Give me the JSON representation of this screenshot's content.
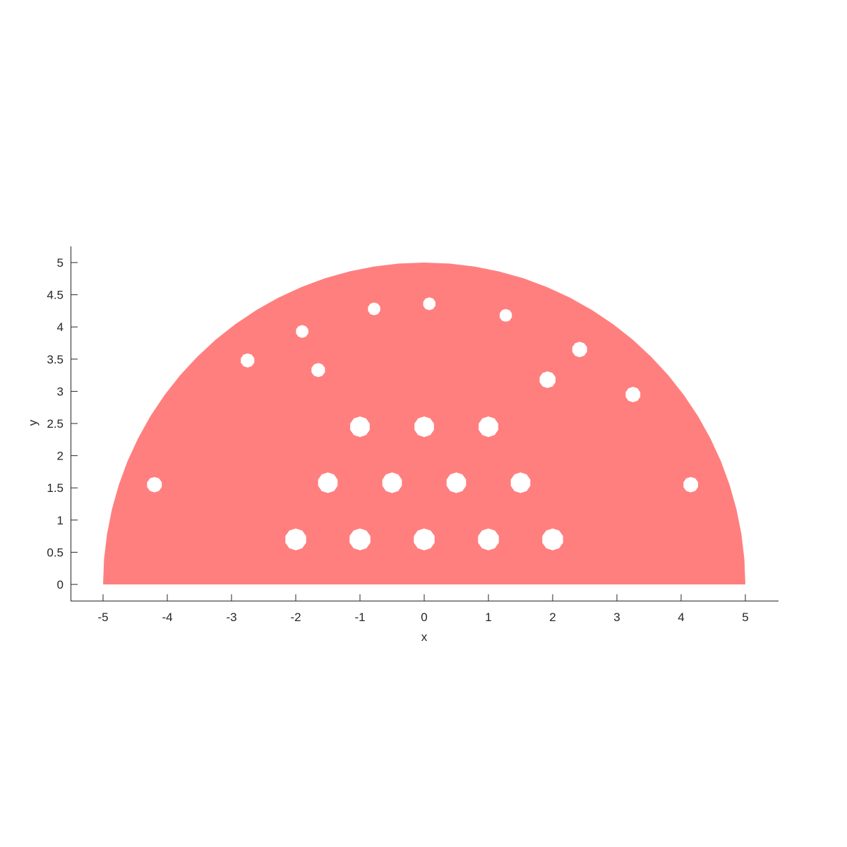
{
  "chart_data": {
    "type": "scatter",
    "title": "",
    "xlabel": "x",
    "ylabel": "y",
    "xlim": [
      -5.5,
      5.5
    ],
    "ylim": [
      -0.25,
      5.25
    ],
    "x_ticks": [
      "-5",
      "-4",
      "-3",
      "-2",
      "-1",
      "0",
      "1",
      "2",
      "3",
      "4",
      "5"
    ],
    "y_ticks": [
      "0",
      "0.5",
      "1",
      "1.5",
      "2",
      "2.5",
      "3",
      "3.5",
      "4",
      "4.5",
      "5"
    ],
    "grid": false,
    "region": {
      "shape": "half-disk",
      "center": [
        0,
        0
      ],
      "radius": 5,
      "color": "#FF7F7F"
    },
    "holes": [
      {
        "x": -1.0,
        "y": 0.7,
        "r": 0.17
      },
      {
        "x": 0.0,
        "y": 0.7,
        "r": 0.17
      },
      {
        "x": 1.0,
        "y": 0.7,
        "r": 0.17
      },
      {
        "x": 2.0,
        "y": 0.7,
        "r": 0.17
      },
      {
        "x": -2.0,
        "y": 0.7,
        "r": 0.17
      },
      {
        "x": -1.5,
        "y": 1.58,
        "r": 0.16
      },
      {
        "x": -0.5,
        "y": 1.58,
        "r": 0.16
      },
      {
        "x": 0.5,
        "y": 1.58,
        "r": 0.16
      },
      {
        "x": 1.5,
        "y": 1.58,
        "r": 0.16
      },
      {
        "x": -1.0,
        "y": 2.45,
        "r": 0.16
      },
      {
        "x": 0.0,
        "y": 2.45,
        "r": 0.16
      },
      {
        "x": 1.0,
        "y": 2.45,
        "r": 0.16
      },
      {
        "x": -4.2,
        "y": 1.55,
        "r": 0.12
      },
      {
        "x": 4.15,
        "y": 1.55,
        "r": 0.12
      },
      {
        "x": -2.75,
        "y": 3.48,
        "r": 0.11
      },
      {
        "x": 1.92,
        "y": 3.18,
        "r": 0.13
      },
      {
        "x": 2.42,
        "y": 3.65,
        "r": 0.12
      },
      {
        "x": 3.25,
        "y": 2.95,
        "r": 0.12
      },
      {
        "x": -1.65,
        "y": 3.33,
        "r": 0.11
      },
      {
        "x": -0.78,
        "y": 4.28,
        "r": 0.1
      },
      {
        "x": 0.08,
        "y": 4.36,
        "r": 0.1
      },
      {
        "x": 1.27,
        "y": 4.18,
        "r": 0.1
      },
      {
        "x": -1.9,
        "y": 3.93,
        "r": 0.1
      },
      {
        "x": -5.0,
        "y": 0.0,
        "r": 0.0
      }
    ]
  }
}
